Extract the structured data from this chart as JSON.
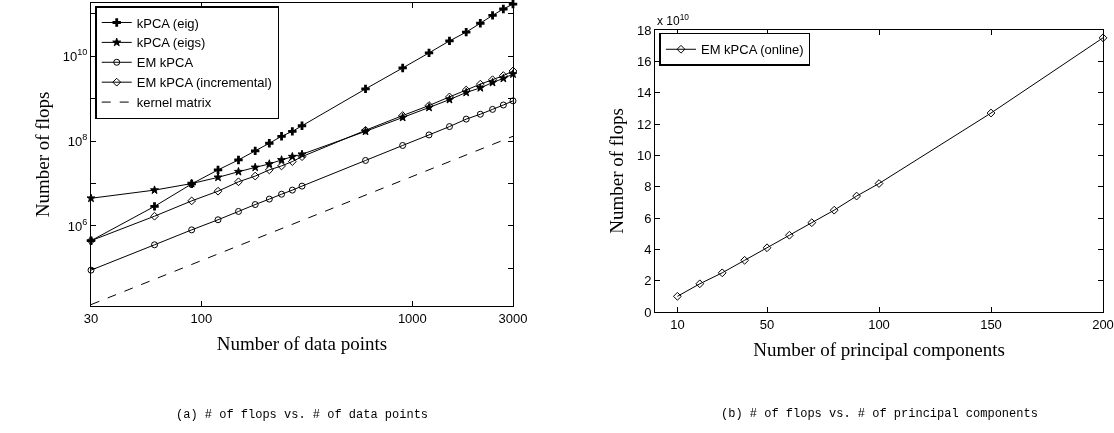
{
  "chart_data": [
    {
      "type": "line",
      "xlabel": "Number of data points",
      "ylabel": "Number of flops",
      "log": "xy",
      "grid": false,
      "legend": "top left",
      "x": [
        30,
        60,
        90,
        120,
        150,
        180,
        210,
        240,
        270,
        300,
        600,
        900,
        1200,
        1500,
        1800,
        2100,
        2400,
        2700,
        3000
      ],
      "xlim": [
        30,
        3000
      ],
      "xticks": [
        30,
        100,
        1000,
        3000
      ],
      "ylim": [
        13000,
        180000000000
      ],
      "yticks": [
        {
          "value": 100000,
          "label": null
        },
        {
          "value": 1000000,
          "label": "10$^{6}$"
        },
        {
          "value": 10000000,
          "label": null
        },
        {
          "value": 100000000,
          "label": "10$^{8}$"
        },
        {
          "value": 1000000000,
          "label": null
        },
        {
          "value": 10000000000,
          "label": "10$^{10}$"
        },
        {
          "value": 100000000000,
          "label": null
        }
      ],
      "series": [
        {
          "name": "kPCA (eig)",
          "color": "#000000",
          "marker": "cross",
          "values": [
            450000,
            2900000,
            9800000,
            21000000,
            36000000,
            59000000,
            89000000,
            130000000,
            170000000,
            230000000,
            1700000000,
            5300000000,
            12000000000,
            23000000000,
            37000000000,
            60000000000,
            92000000000,
            130000000000,
            170000000000
          ]
        },
        {
          "name": "kPCA (eigs)",
          "color": "#000000",
          "marker": "star",
          "values": [
            4500000,
            7000000,
            10000000,
            14000000,
            19000000,
            24000000,
            29000000,
            36000000,
            43000000,
            49000000,
            170000000,
            360000000,
            620000000,
            950000000,
            1400000000,
            1800000000,
            2400000000,
            3000000000,
            3800000000
          ]
        },
        {
          "name": "EM kPCA",
          "color": "#000000",
          "marker": "circle",
          "values": [
            91000,
            360000,
            810000,
            1400000,
            2200000,
            3200000,
            4300000,
            5600000,
            7000000,
            8700000,
            35000000,
            79000000,
            140000000,
            220000000,
            330000000,
            430000000,
            560000000,
            710000000,
            890000000
          ]
        },
        {
          "name": "EM kPCA (incremental)",
          "color": "#000000",
          "marker": "diamond",
          "values": [
            450000,
            1700000,
            3900000,
            6600000,
            11000000,
            15000000,
            21000000,
            26000000,
            33000000,
            43000000,
            180000000,
            400000000,
            690000000,
            1100000000,
            1600000000,
            2200000000,
            2800000000,
            3500000000,
            4500000000
          ]
        },
        {
          "name": "kernel matrix",
          "color": "#000000",
          "marker": "none",
          "line_style": "dashed",
          "x": [
            30,
            3000
          ],
          "values": [
            14000,
            130000000
          ]
        }
      ],
      "annotations": [
        "(a) # of flops vs. # of data points"
      ]
    },
    {
      "type": "line",
      "xlabel": "Number of principal components",
      "ylabel": "Number of flops",
      "grid": false,
      "legend": "top left",
      "x": [
        10,
        20,
        30,
        40,
        50,
        60,
        70,
        80,
        90,
        100,
        150,
        200
      ],
      "xlim": [
        0,
        200
      ],
      "xticks": [
        10,
        50,
        100,
        150,
        200
      ],
      "ylim": [
        0,
        18
      ],
      "yticks": [
        0,
        2,
        4,
        6,
        8,
        10,
        12,
        14,
        16,
        18
      ],
      "series": [
        {
          "name": "EM kPCA (online)",
          "color": "#000000",
          "marker": "diamond",
          "values": [
            1.0,
            1.8,
            2.5,
            3.3,
            4.1,
            4.9,
            5.7,
            6.5,
            7.4,
            8.2,
            12.7,
            17.5
          ]
        }
      ],
      "annotations": [
        "x 10$^{10}$",
        "(b) # of flops vs. # of principal components"
      ]
    }
  ]
}
